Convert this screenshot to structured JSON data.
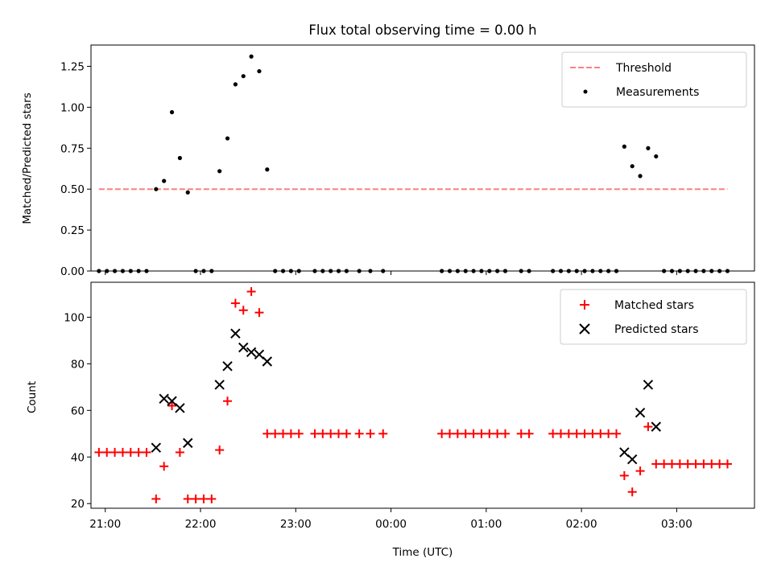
{
  "chart_data": [
    {
      "type": "scatter",
      "title": "Flux total observing time = 0.00 h",
      "xlabel": "",
      "ylabel": "Matched/Predicted stars",
      "ylim": [
        0,
        1.38
      ],
      "yticks": [
        "0.00",
        "0.25",
        "0.50",
        "0.75",
        "1.00",
        "1.25"
      ],
      "xlim": [
        "20:51",
        "03:49"
      ],
      "legend": {
        "placement": "top-right",
        "entries": [
          "Threshold",
          "Measurements"
        ]
      },
      "threshold": {
        "name": "Threshold",
        "value": 0.5,
        "x_range": [
          "20:56",
          "03:32"
        ],
        "color": "#ff7f7f",
        "style": "dashed"
      },
      "series": [
        {
          "name": "Measurements",
          "color": "#000000",
          "points": [
            [
              "20:56",
              0
            ],
            [
              "21:01",
              0
            ],
            [
              "21:06",
              0
            ],
            [
              "21:11",
              0
            ],
            [
              "21:16",
              0
            ],
            [
              "21:21",
              0
            ],
            [
              "21:26",
              0
            ],
            [
              "21:32",
              0.5
            ],
            [
              "21:37",
              0.55
            ],
            [
              "21:42",
              0.97
            ],
            [
              "21:47",
              0.69
            ],
            [
              "21:52",
              0.48
            ],
            [
              "21:57",
              0
            ],
            [
              "22:02",
              0
            ],
            [
              "22:07",
              0
            ],
            [
              "22:12",
              0.61
            ],
            [
              "22:17",
              0.81
            ],
            [
              "22:22",
              1.14
            ],
            [
              "22:27",
              1.19
            ],
            [
              "22:32",
              1.31
            ],
            [
              "22:37",
              1.22
            ],
            [
              "22:42",
              0.62
            ],
            [
              "22:47",
              0
            ],
            [
              "22:52",
              0
            ],
            [
              "22:57",
              0
            ],
            [
              "23:02",
              0
            ],
            [
              "23:12",
              0
            ],
            [
              "23:17",
              0
            ],
            [
              "23:22",
              0
            ],
            [
              "23:27",
              0
            ],
            [
              "23:32",
              0
            ],
            [
              "23:40",
              0
            ],
            [
              "23:47",
              0
            ],
            [
              "23:55",
              0
            ],
            [
              "00:32",
              0
            ],
            [
              "00:37",
              0
            ],
            [
              "00:42",
              0
            ],
            [
              "00:47",
              0
            ],
            [
              "00:52",
              0
            ],
            [
              "00:57",
              0
            ],
            [
              "01:02",
              0
            ],
            [
              "01:07",
              0
            ],
            [
              "01:12",
              0
            ],
            [
              "01:22",
              0
            ],
            [
              "01:27",
              0
            ],
            [
              "01:42",
              0
            ],
            [
              "01:47",
              0
            ],
            [
              "01:52",
              0
            ],
            [
              "01:57",
              0
            ],
            [
              "02:02",
              0
            ],
            [
              "02:07",
              0
            ],
            [
              "02:12",
              0
            ],
            [
              "02:17",
              0
            ],
            [
              "02:22",
              0
            ],
            [
              "02:27",
              0.76
            ],
            [
              "02:32",
              0.64
            ],
            [
              "02:37",
              0.58
            ],
            [
              "02:42",
              0.75
            ],
            [
              "02:47",
              0.7
            ],
            [
              "02:52",
              0
            ],
            [
              "02:57",
              0
            ],
            [
              "03:02",
              0
            ],
            [
              "03:07",
              0
            ],
            [
              "03:12",
              0
            ],
            [
              "03:17",
              0
            ],
            [
              "03:22",
              0
            ],
            [
              "03:27",
              0
            ],
            [
              "03:32",
              0
            ]
          ]
        }
      ]
    },
    {
      "type": "scatter",
      "title": "",
      "xlabel": "Time (UTC)",
      "ylabel": "Count",
      "ylim": [
        18,
        115
      ],
      "yticks": [
        "20",
        "40",
        "60",
        "80",
        "100"
      ],
      "xlim": [
        "20:51",
        "03:49"
      ],
      "xticks": [
        "21:00",
        "22:00",
        "23:00",
        "00:00",
        "01:00",
        "02:00",
        "03:00"
      ],
      "legend": {
        "placement": "top-right",
        "entries": [
          "Matched stars",
          "Predicted stars"
        ]
      },
      "series": [
        {
          "name": "Matched stars",
          "color": "#ff0000",
          "marker": "plus",
          "points": [
            [
              "20:56",
              42
            ],
            [
              "21:01",
              42
            ],
            [
              "21:06",
              42
            ],
            [
              "21:11",
              42
            ],
            [
              "21:16",
              42
            ],
            [
              "21:21",
              42
            ],
            [
              "21:26",
              42
            ],
            [
              "21:32",
              22
            ],
            [
              "21:37",
              36
            ],
            [
              "21:42",
              62
            ],
            [
              "21:47",
              42
            ],
            [
              "21:52",
              22
            ],
            [
              "21:57",
              22
            ],
            [
              "22:02",
              22
            ],
            [
              "22:07",
              22
            ],
            [
              "22:12",
              43
            ],
            [
              "22:17",
              64
            ],
            [
              "22:22",
              106
            ],
            [
              "22:27",
              103
            ],
            [
              "22:32",
              111
            ],
            [
              "22:37",
              102
            ],
            [
              "22:42",
              50
            ],
            [
              "22:47",
              50
            ],
            [
              "22:52",
              50
            ],
            [
              "22:57",
              50
            ],
            [
              "23:02",
              50
            ],
            [
              "23:12",
              50
            ],
            [
              "23:17",
              50
            ],
            [
              "23:22",
              50
            ],
            [
              "23:27",
              50
            ],
            [
              "23:32",
              50
            ],
            [
              "23:40",
              50
            ],
            [
              "23:47",
              50
            ],
            [
              "23:55",
              50
            ],
            [
              "00:32",
              50
            ],
            [
              "00:37",
              50
            ],
            [
              "00:42",
              50
            ],
            [
              "00:47",
              50
            ],
            [
              "00:52",
              50
            ],
            [
              "00:57",
              50
            ],
            [
              "01:02",
              50
            ],
            [
              "01:07",
              50
            ],
            [
              "01:12",
              50
            ],
            [
              "01:22",
              50
            ],
            [
              "01:27",
              50
            ],
            [
              "01:42",
              50
            ],
            [
              "01:47",
              50
            ],
            [
              "01:52",
              50
            ],
            [
              "01:57",
              50
            ],
            [
              "02:02",
              50
            ],
            [
              "02:07",
              50
            ],
            [
              "02:12",
              50
            ],
            [
              "02:17",
              50
            ],
            [
              "02:22",
              50
            ],
            [
              "02:27",
              32
            ],
            [
              "02:32",
              25
            ],
            [
              "02:37",
              34
            ],
            [
              "02:42",
              53
            ],
            [
              "02:47",
              37
            ],
            [
              "02:52",
              37
            ],
            [
              "02:57",
              37
            ],
            [
              "03:02",
              37
            ],
            [
              "03:07",
              37
            ],
            [
              "03:12",
              37
            ],
            [
              "03:17",
              37
            ],
            [
              "03:22",
              37
            ],
            [
              "03:27",
              37
            ],
            [
              "03:32",
              37
            ]
          ]
        },
        {
          "name": "Predicted stars",
          "color": "#000000",
          "marker": "x",
          "points": [
            [
              "21:32",
              44
            ],
            [
              "21:37",
              65
            ],
            [
              "21:42",
              64
            ],
            [
              "21:47",
              61
            ],
            [
              "21:52",
              46
            ],
            [
              "22:12",
              71
            ],
            [
              "22:17",
              79
            ],
            [
              "22:22",
              93
            ],
            [
              "22:27",
              87
            ],
            [
              "22:32",
              85
            ],
            [
              "22:37",
              84
            ],
            [
              "22:42",
              81
            ],
            [
              "02:27",
              42
            ],
            [
              "02:32",
              39
            ],
            [
              "02:37",
              59
            ],
            [
              "02:42",
              71
            ],
            [
              "02:47",
              53
            ]
          ]
        }
      ]
    }
  ]
}
